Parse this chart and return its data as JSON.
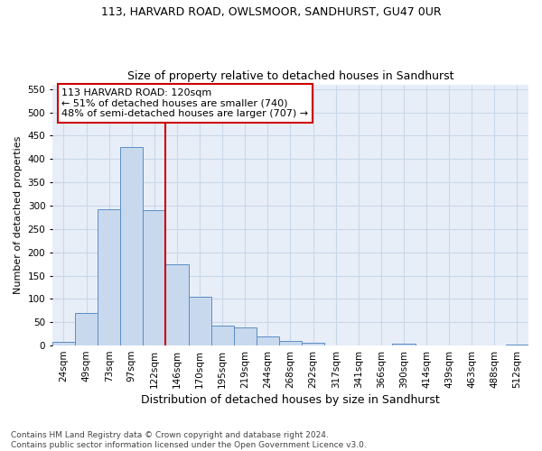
{
  "title1": "113, HARVARD ROAD, OWLSMOOR, SANDHURST, GU47 0UR",
  "title2": "Size of property relative to detached houses in Sandhurst",
  "xlabel": "Distribution of detached houses by size in Sandhurst",
  "ylabel": "Number of detached properties",
  "categories": [
    "24sqm",
    "49sqm",
    "73sqm",
    "97sqm",
    "122sqm",
    "146sqm",
    "170sqm",
    "195sqm",
    "219sqm",
    "244sqm",
    "268sqm",
    "292sqm",
    "317sqm",
    "341sqm",
    "366sqm",
    "390sqm",
    "414sqm",
    "439sqm",
    "463sqm",
    "488sqm",
    "512sqm"
  ],
  "values": [
    8,
    70,
    292,
    425,
    290,
    175,
    105,
    43,
    38,
    20,
    10,
    5,
    0,
    0,
    0,
    4,
    0,
    0,
    0,
    0,
    3
  ],
  "bar_color": "#c8d9ee",
  "bar_edge_color": "#5b8ec4",
  "vline_color": "#cc0000",
  "annotation_text": "113 HARVARD ROAD: 120sqm\n← 51% of detached houses are smaller (740)\n48% of semi-detached houses are larger (707) →",
  "annotation_box_color": "#ffffff",
  "annotation_box_edge": "#cc0000",
  "ylim": [
    0,
    560
  ],
  "yticks": [
    0,
    50,
    100,
    150,
    200,
    250,
    300,
    350,
    400,
    450,
    500,
    550
  ],
  "grid_color": "#c8d8e8",
  "bg_color": "#e8eef8",
  "footer": "Contains HM Land Registry data © Crown copyright and database right 2024.\nContains public sector information licensed under the Open Government Licence v3.0.",
  "title1_fontsize": 9,
  "title2_fontsize": 9,
  "xlabel_fontsize": 9,
  "ylabel_fontsize": 8,
  "tick_fontsize": 7.5,
  "annotation_fontsize": 8,
  "footer_fontsize": 6.5
}
